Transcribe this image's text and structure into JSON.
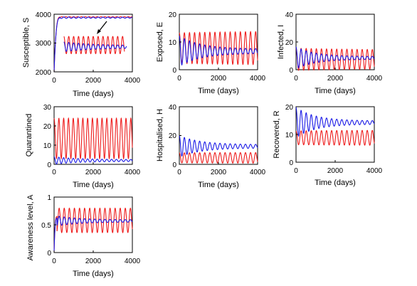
{
  "colors": {
    "red": "#ee1c1c",
    "blue": "#1a1ae6",
    "axis": "#000000"
  },
  "chart_data": [
    {
      "type": "line",
      "xlabel": "Time (days)",
      "ylabel": "Susceptible, S",
      "xlim": [
        0,
        4000
      ],
      "ylim": [
        2000,
        4000
      ],
      "xticks": [
        "0",
        "2000",
        "4000"
      ],
      "yticks": [
        "2000",
        "3000",
        "4000"
      ],
      "xtick_values": [
        0,
        2000,
        4000
      ],
      "ytick_values": [
        2000,
        3000,
        4000
      ],
      "annotation": "arrow",
      "series": [
        {
          "color": "red",
          "start": 0,
          "x0": 0,
          "y0": 2000,
          "x1": 300,
          "y1": 3900,
          "mean": 3905,
          "amp0": 10,
          "amp1": 10,
          "period": 200,
          "tau": 100000
        },
        {
          "color": "blue",
          "start": 0,
          "x0": 0,
          "y0": 2000,
          "x1": 300,
          "y1": 3870,
          "mean": 3880,
          "amp0": 30,
          "amp1": 15,
          "period": 250,
          "tau": 2000
        },
        {
          "color": "red",
          "start": 500,
          "mean": 2930,
          "amp0": 300,
          "amp1": 300,
          "period": 250,
          "tau": 100000,
          "end": 3600
        },
        {
          "color": "blue",
          "start": 500,
          "mean": 2870,
          "amp0": 170,
          "amp1": 40,
          "period": 250,
          "tau": 1600,
          "end": 3700
        }
      ]
    },
    {
      "type": "line",
      "xlabel": "Time (days)",
      "ylabel": "Exposed, E",
      "xlim": [
        0,
        4000
      ],
      "ylim": [
        0,
        20
      ],
      "xticks": [
        "0",
        "2000",
        "4000"
      ],
      "yticks": [
        "0",
        "10",
        "20"
      ],
      "xtick_values": [
        0,
        2000,
        4000
      ],
      "ytick_values": [
        0,
        10,
        20
      ],
      "series": [
        {
          "color": "red",
          "start": 0,
          "mean": 7.8,
          "amp0": 5.5,
          "amp1": 6.2,
          "period": 260,
          "tau": 4000
        },
        {
          "color": "blue",
          "start": 0,
          "mean": 6.7,
          "amp0": 5.5,
          "amp1": 0.8,
          "period": 260,
          "tau": 1100
        }
      ]
    },
    {
      "type": "line",
      "xlabel": "Time (days)",
      "ylabel": "Infected, I",
      "xlim": [
        0,
        4000
      ],
      "ylim": [
        0,
        40
      ],
      "xticks": [
        "0",
        "2000",
        "4000"
      ],
      "yticks": [
        "0",
        "20",
        "40"
      ],
      "xtick_values": [
        0,
        2000,
        4000
      ],
      "ytick_values": [
        0,
        20,
        40
      ],
      "series": [
        {
          "color": "red",
          "start": 0,
          "mean": 7.5,
          "amp0": 8,
          "amp1": 6.5,
          "period": 260,
          "tau": 4000
        },
        {
          "color": "blue",
          "start": 0,
          "mean": 8.5,
          "amp0": 8,
          "amp1": 1,
          "period": 260,
          "tau": 1000
        }
      ]
    },
    {
      "type": "line",
      "xlabel": "Time (days)",
      "ylabel": "Quarantined",
      "xlim": [
        0,
        4000
      ],
      "ylim": [
        0,
        30
      ],
      "xticks": [
        "0",
        "2000",
        "4000"
      ],
      "yticks": [
        "0",
        "10",
        "20",
        "30"
      ],
      "xtick_values": [
        0,
        2000,
        4000
      ],
      "ytick_values": [
        0,
        10,
        20,
        30
      ],
      "series": [
        {
          "color": "red",
          "start": 0,
          "mean": 13.5,
          "amp0": 10.5,
          "amp1": 10.5,
          "period": 245,
          "tau": 100000
        },
        {
          "color": "blue",
          "start": 0,
          "mean": 2,
          "amp0": 2,
          "amp1": 0.5,
          "period": 245,
          "tau": 1200
        }
      ]
    },
    {
      "type": "line",
      "xlabel": "Time (days)",
      "ylabel": "Hospitalised, H",
      "xlim": [
        0,
        4000
      ],
      "ylim": [
        0,
        40
      ],
      "xticks": [
        "0",
        "2000",
        "4000"
      ],
      "yticks": [
        "0",
        "20",
        "40"
      ],
      "xtick_values": [
        0,
        2000,
        4000
      ],
      "ytick_values": [
        0,
        20,
        40
      ],
      "series": [
        {
          "color": "red",
          "start": 0,
          "mean": 4.5,
          "amp0": 3.5,
          "amp1": 3.8,
          "period": 260,
          "tau": 4000
        },
        {
          "color": "blue",
          "start": 0,
          "mean": 12.5,
          "amp0": 7.5,
          "amp1": 1.2,
          "period": 260,
          "tau": 1100
        }
      ]
    },
    {
      "type": "line",
      "xlabel": "",
      "ylabel": "Recovered, R",
      "xlim": [
        0,
        4000
      ],
      "ylim": [
        0,
        20
      ],
      "xticks": [
        "0",
        "2000",
        "4000"
      ],
      "yticks": [
        "0",
        "10",
        "20"
      ],
      "xtick_values": [
        0,
        2000,
        4000
      ],
      "ytick_values": [
        0,
        10,
        20
      ],
      "series": [
        {
          "color": "red",
          "start": 0,
          "mean": 8.8,
          "amp0": 2.5,
          "amp1": 2.8,
          "period": 260,
          "tau": 4000
        },
        {
          "color": "blue",
          "start": 0,
          "mean": 14.3,
          "amp0": 5.5,
          "amp1": 0.6,
          "period": 260,
          "tau": 1000
        }
      ]
    },
    {
      "type": "line",
      "xlabel": "Time (days)",
      "ylabel": "Awareness level, A",
      "xlim": [
        0,
        4000
      ],
      "ylim": [
        0,
        1
      ],
      "xticks": [
        "0",
        "2000",
        "4000"
      ],
      "yticks": [
        "0",
        "0.5",
        "1"
      ],
      "xtick_values": [
        0,
        2000,
        4000
      ],
      "ytick_values": [
        0,
        0.5,
        1
      ],
      "series": [
        {
          "color": "red",
          "start": 0,
          "x0": 0,
          "y0": 0.02,
          "x1": 150,
          "y1": 0.65,
          "mean": 0.58,
          "amp0": 0.22,
          "amp1": 0.22,
          "period": 260,
          "tau": 100000
        },
        {
          "color": "blue",
          "start": 0,
          "x0": 0,
          "y0": 0.02,
          "x1": 150,
          "y1": 0.62,
          "mean": 0.57,
          "amp0": 0.1,
          "amp1": 0.02,
          "period": 260,
          "tau": 1200
        }
      ]
    }
  ]
}
